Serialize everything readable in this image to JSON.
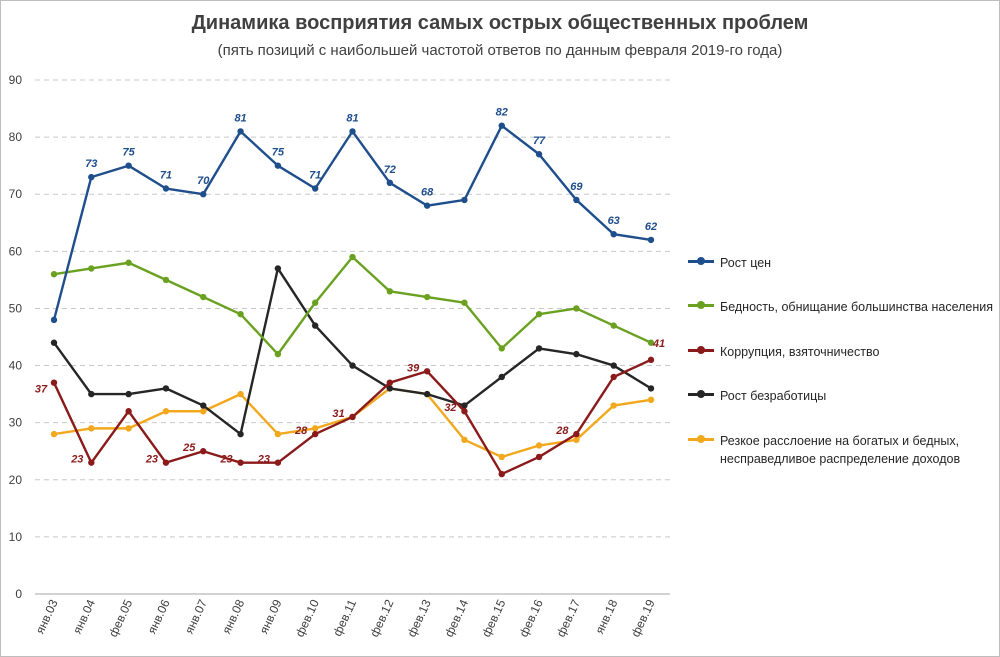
{
  "chart_data": {
    "type": "line",
    "title": "Динамика восприятия самых острых общественных проблем",
    "subtitle": "(пять позиций с наибольшей частотой ответов по данным февраля 2019-го года)",
    "categories": [
      "янв.03",
      "янв.04",
      "фев.05",
      "янв.06",
      "янв.07",
      "янв.08",
      "янв.09",
      "фев.10",
      "фев.11",
      "фев.12",
      "фев.13",
      "фев.14",
      "фев.15",
      "фев.16",
      "фев.17",
      "янв.18",
      "фев.19"
    ],
    "ylim": [
      0,
      90
    ],
    "yticks": [
      0,
      10,
      20,
      30,
      40,
      50,
      60,
      70,
      80,
      90
    ],
    "grid": true,
    "legend_position": "right",
    "series": [
      {
        "name": "Рост цен",
        "color": "#1F4E8C",
        "values": [
          48,
          73,
          75,
          71,
          70,
          81,
          75,
          71,
          81,
          72,
          68,
          69,
          82,
          77,
          69,
          63,
          62
        ],
        "labels": [
          "",
          "73",
          "75",
          "71",
          "70",
          "81",
          "75",
          "71",
          "81",
          "72",
          "68",
          "",
          "82",
          "77",
          "69",
          "63",
          "62"
        ]
      },
      {
        "name": "Бедность, обнищание большинства населения",
        "color": "#6AA121",
        "values": [
          56,
          57,
          58,
          55,
          52,
          49,
          42,
          51,
          59,
          53,
          52,
          51,
          43,
          49,
          50,
          47,
          44
        ],
        "labels": []
      },
      {
        "name": "Коррупция, взяточничество",
        "color": "#8B1A1A",
        "values": [
          37,
          23,
          32,
          23,
          25,
          23,
          23,
          28,
          31,
          37,
          39,
          32,
          21,
          24,
          28,
          38,
          41
        ],
        "labels": [
          "37",
          "23",
          "",
          "23",
          "25",
          "23",
          "23",
          "28",
          "31",
          "",
          "39",
          "32",
          "",
          "",
          "28",
          "",
          "41"
        ]
      },
      {
        "name": "Рост безработицы",
        "color": "#262626",
        "values": [
          44,
          35,
          35,
          36,
          33,
          28,
          57,
          47,
          40,
          36,
          35,
          33,
          38,
          43,
          42,
          40,
          36
        ],
        "labels": []
      },
      {
        "name": "Резкое расслоение на богатых и бедных, несправедливое распределение доходов",
        "color": "#F2A81D",
        "values": [
          28,
          29,
          29,
          32,
          32,
          35,
          28,
          29,
          31,
          36,
          35,
          27,
          24,
          26,
          27,
          33,
          34
        ],
        "labels": []
      }
    ]
  }
}
